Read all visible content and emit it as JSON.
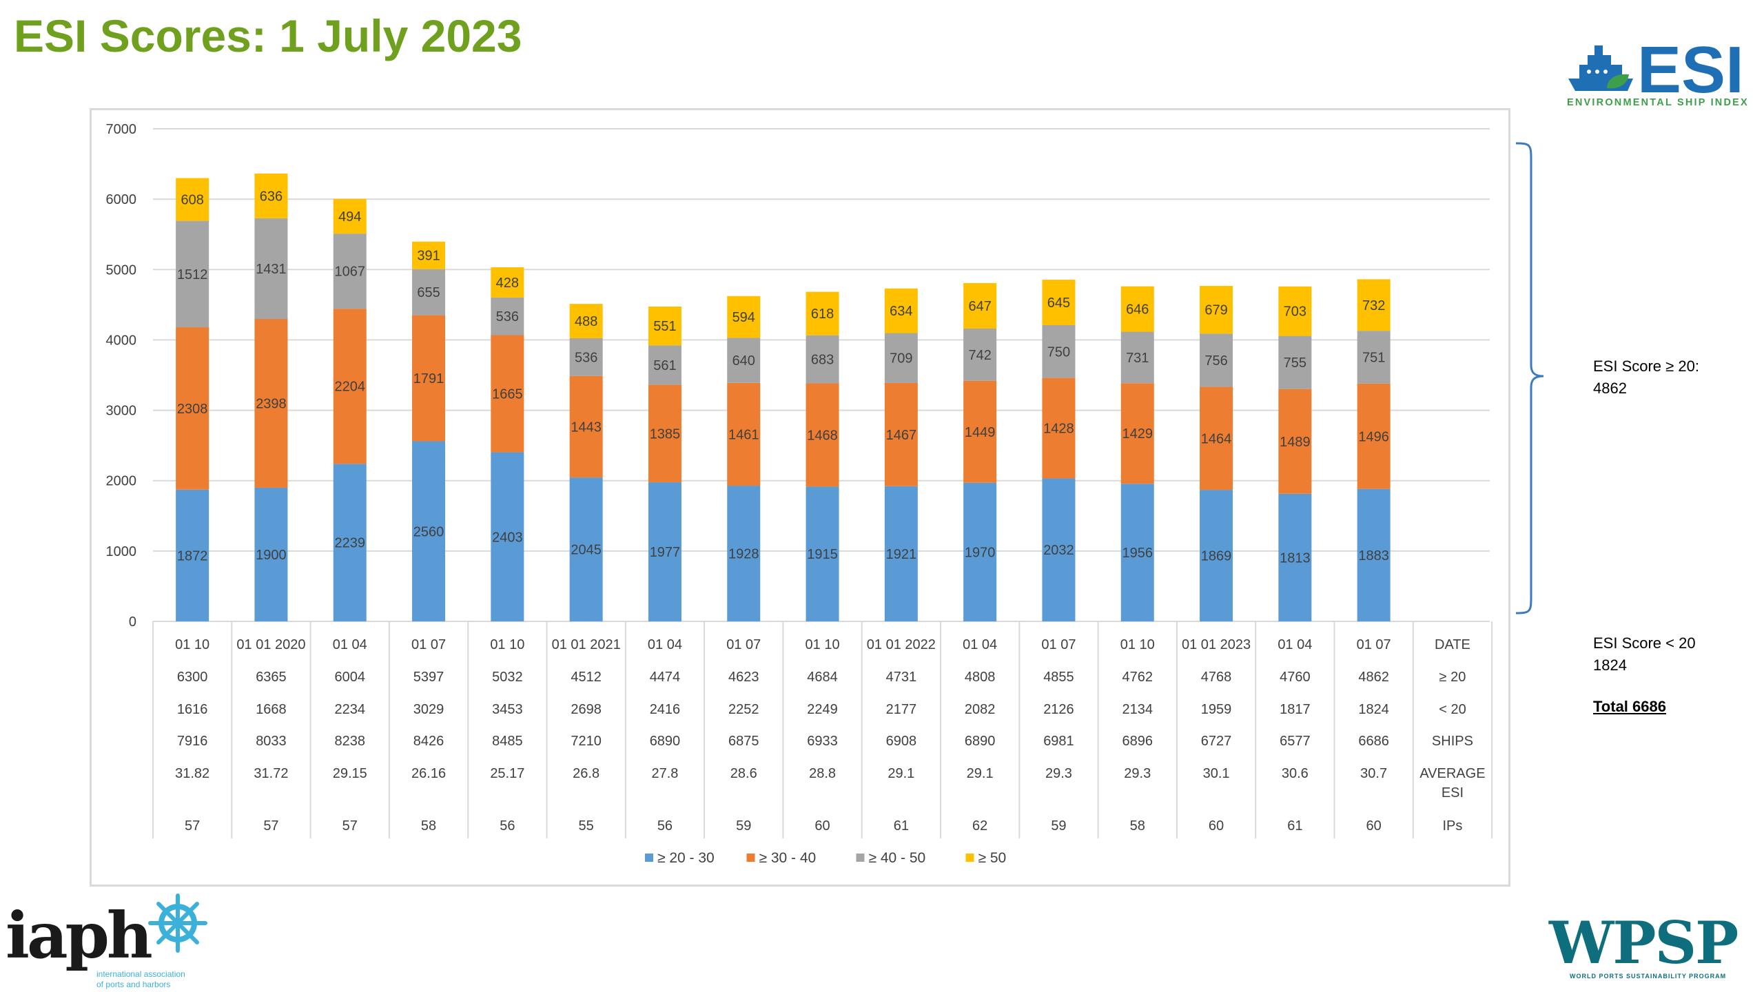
{
  "page": {
    "title": "ESI Scores: 1 July 2023"
  },
  "logos": {
    "esi": {
      "name": "ESI",
      "tagline": "ENVIRONMENTAL SHIP INDEX"
    },
    "iaph": {
      "name": "iaph",
      "tagline_line1": "international association",
      "tagline_line2": "of ports and harbors"
    },
    "wpsp": {
      "name": "WPSP",
      "tagline": "WORLD PORTS SUSTAINABILITY PROGRAM"
    }
  },
  "side_notes": {
    "above_label": "ESI Score  ≥ 20:",
    "above_value": "4862",
    "below_label": "ESI Score < 20",
    "below_value": "1824",
    "total": "Total 6686"
  },
  "colors": {
    "title": "#70A11E",
    "esi_blue": "#1F6FB4",
    "esi_green": "#3E9E4A",
    "iaph_cyan": "#3BB1D9",
    "wpsp_teal": "#0E6E7E",
    "bracket": "#3A7BC0"
  },
  "chart_data": {
    "type": "bar",
    "stacked": true,
    "ylim": [
      0,
      7000
    ],
    "yticks": [
      0,
      1000,
      2000,
      3000,
      4000,
      5000,
      6000,
      7000
    ],
    "grid": true,
    "legend_position": "bottom",
    "categories": [
      "01 10",
      "01 01 2020",
      "01 04",
      "01 07",
      "01 10",
      "01 01 2021",
      "01 04",
      "01 07",
      "01 10",
      "01 01 2022",
      "01 04",
      "01 07",
      "01 10",
      "01 01 2023",
      "01 04",
      "01 07"
    ],
    "series": [
      {
        "name": "≥ 20 - 30",
        "color": "#5B9BD5",
        "values": [
          1872,
          1900,
          2239,
          2560,
          2403,
          2045,
          1977,
          1928,
          1915,
          1921,
          1970,
          2032,
          1956,
          1869,
          1813,
          1883
        ]
      },
      {
        "name": "≥  30 - 40",
        "color": "#ED7D31",
        "values": [
          2308,
          2398,
          2204,
          1791,
          1665,
          1443,
          1385,
          1461,
          1468,
          1467,
          1449,
          1428,
          1429,
          1464,
          1489,
          1496
        ]
      },
      {
        "name": "≥  40 - 50",
        "color": "#A5A5A5",
        "values": [
          1512,
          1431,
          1067,
          655,
          536,
          536,
          561,
          640,
          683,
          709,
          742,
          750,
          731,
          756,
          755,
          751
        ]
      },
      {
        "name": "≥  50",
        "color": "#FFC000",
        "values": [
          608,
          636,
          494,
          391,
          428,
          488,
          551,
          594,
          618,
          634,
          647,
          645,
          646,
          679,
          703,
          732
        ]
      }
    ],
    "table": {
      "rows": [
        {
          "label": "DATE",
          "values": [
            "01 10",
            "01 01 2020",
            "01 04",
            "01 07",
            "01 10",
            "01 01 2021",
            "01 04",
            "01 07",
            "01 10",
            "01 01 2022",
            "01 04",
            "01 07",
            "01 10",
            "01 01 2023",
            "01 04",
            "01 07"
          ]
        },
        {
          "label": "≥ 20",
          "values": [
            "6300",
            "6365",
            "6004",
            "5397",
            "5032",
            "4512",
            "4474",
            "4623",
            "4684",
            "4731",
            "4808",
            "4855",
            "4762",
            "4768",
            "4760",
            "4862"
          ]
        },
        {
          "label": "< 20",
          "values": [
            "1616",
            "1668",
            "2234",
            "3029",
            "3453",
            "2698",
            "2416",
            "2252",
            "2249",
            "2177",
            "2082",
            "2126",
            "2134",
            "1959",
            "1817",
            "1824"
          ]
        },
        {
          "label": "SHIPS",
          "values": [
            "7916",
            "8033",
            "8238",
            "8426",
            "8485",
            "7210",
            "6890",
            "6875",
            "6933",
            "6908",
            "6890",
            "6981",
            "6896",
            "6727",
            "6577",
            "6686"
          ]
        },
        {
          "label": "AVERAGE ESI",
          "values": [
            "31.82",
            "31.72",
            "29.15",
            "26.16",
            "25.17",
            "26.8",
            "27.8",
            "28.6",
            "28.8",
            "29.1",
            "29.1",
            "29.3",
            "29.3",
            "30.1",
            "30.6",
            "30.7"
          ]
        },
        {
          "label": "IPs",
          "values": [
            "57",
            "57",
            "57",
            "58",
            "56",
            "55",
            "56",
            "59",
            "60",
            "61",
            "62",
            "59",
            "58",
            "60",
            "61",
            "60"
          ]
        }
      ]
    }
  }
}
